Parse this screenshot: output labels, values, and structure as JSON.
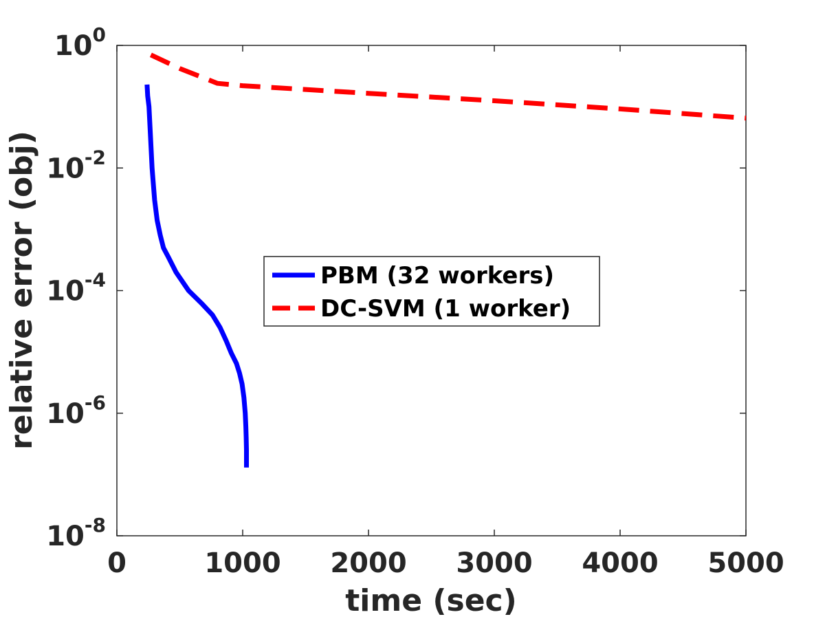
{
  "chart_data": {
    "type": "line",
    "title": "",
    "xlabel": "time (sec)",
    "ylabel": "relative error (obj)",
    "xlim": [
      0,
      5000
    ],
    "ylim": [
      1e-08,
      1
    ],
    "yscale": "log",
    "grid": false,
    "legend_position": "center",
    "x_ticks": [
      0,
      1000,
      2000,
      3000,
      4000,
      5000
    ],
    "y_ticks": [
      {
        "value": 1,
        "base": "10",
        "exp": "0"
      },
      {
        "value": 0.01,
        "base": "10",
        "exp": "-2"
      },
      {
        "value": 0.0001,
        "base": "10",
        "exp": "-4"
      },
      {
        "value": 1e-06,
        "base": "10",
        "exp": "-6"
      },
      {
        "value": 1e-08,
        "base": "10",
        "exp": "-8"
      }
    ],
    "series": [
      {
        "name": "PBM (32 workers)",
        "color": "#0000ff",
        "style": "solid",
        "x": [
          240,
          245,
          255,
          265,
          280,
          300,
          320,
          345,
          370,
          410,
          470,
          570,
          680,
          760,
          820,
          870,
          910,
          950,
          975,
          995,
          1010,
          1020,
          1025,
          1028,
          1030,
          1030
        ],
        "y": [
          0.23,
          0.15,
          0.1,
          0.04,
          0.01,
          0.003,
          0.0014,
          0.0008,
          0.0005,
          0.00035,
          0.0002,
          0.0001,
          6e-05,
          4e-05,
          2.5e-05,
          1.5e-05,
          9.5e-06,
          6.5e-06,
          4.5e-06,
          3e-06,
          1.8e-06,
          1e-06,
          6e-07,
          4e-07,
          2.5e-07,
          1.3e-07
        ]
      },
      {
        "name": "DC-SVM (1 worker)",
        "color": "#ff0000",
        "style": "dashed",
        "x": [
          270,
          500,
          800,
          1000,
          2000,
          3000,
          4000,
          5000
        ],
        "y": [
          0.7,
          0.42,
          0.24,
          0.22,
          0.165,
          0.125,
          0.092,
          0.065
        ]
      }
    ]
  }
}
